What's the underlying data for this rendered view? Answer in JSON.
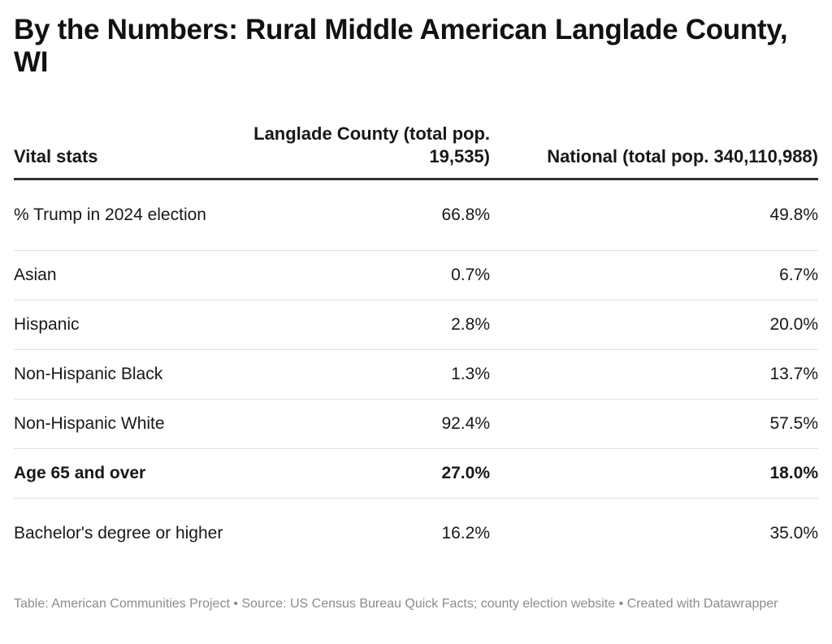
{
  "title": "By the Numbers: Rural Middle American Langlade County, WI",
  "chart_data": {
    "type": "table",
    "title": "By the Numbers: Rural Middle American Langlade County, WI",
    "columns": [
      "Vital stats",
      "Langlade County (total pop. 19,535)",
      "National (total pop. 340,110,988)"
    ],
    "rows": [
      {
        "label": "% Trump in 2024 election",
        "county": "66.8%",
        "national": "49.8%",
        "bold": false
      },
      {
        "label": "Asian",
        "county": "0.7%",
        "national": "6.7%",
        "bold": false
      },
      {
        "label": "Hispanic",
        "county": "2.8%",
        "national": "20.0%",
        "bold": false
      },
      {
        "label": "Non-Hispanic Black",
        "county": "1.3%",
        "national": "13.7%",
        "bold": false
      },
      {
        "label": "Non-Hispanic White",
        "county": "92.4%",
        "national": "57.5%",
        "bold": false
      },
      {
        "label": "Age 65 and over",
        "county": "27.0%",
        "national": "18.0%",
        "bold": true
      },
      {
        "label": "Bachelor's degree or higher",
        "county": "16.2%",
        "national": "35.0%",
        "bold": false
      }
    ]
  },
  "footer": "Table: American Communities Project • Source: US Census Bureau Quick Facts; county election website • Created with Datawrapper"
}
